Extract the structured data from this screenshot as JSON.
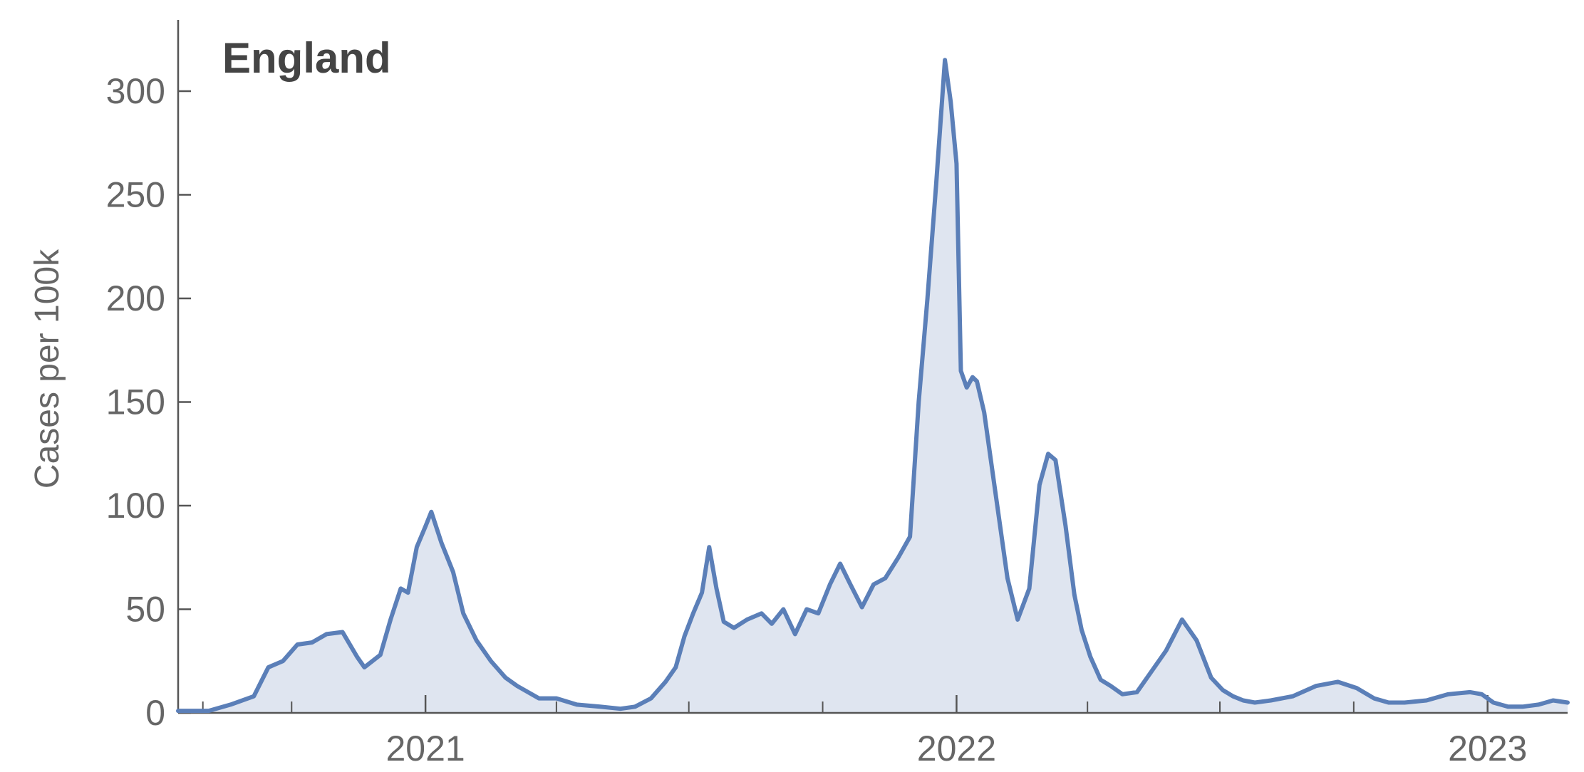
{
  "chart_data": {
    "type": "area",
    "title": "England",
    "xlabel": "",
    "ylabel": "Cases per 100k",
    "ylim": [
      0,
      330
    ],
    "xlim": [
      "2020-07-15",
      "2023-02-25"
    ],
    "y_ticks": [
      0,
      50,
      100,
      150,
      200,
      250,
      300
    ],
    "x_ticks": [
      {
        "date": "2021-01-01",
        "label": "2021"
      },
      {
        "date": "2022-01-01",
        "label": "2022"
      },
      {
        "date": "2023-01-01",
        "label": "2023"
      }
    ],
    "x_minor_ticks": [
      "2020-08-01",
      "2020-10-01",
      "2021-04-01",
      "2021-07-01",
      "2021-10-01",
      "2022-04-01",
      "2022-07-01",
      "2022-10-01"
    ],
    "grid": false,
    "colors": {
      "line": "#5b7fb8",
      "fill": "#dfe5f0",
      "axis": "#555555",
      "text": "#666666",
      "title": "#444444"
    },
    "series": [
      {
        "x": [
          "2020-07-15",
          "2020-08-05",
          "2020-08-20",
          "2020-09-05",
          "2020-09-15",
          "2020-09-25",
          "2020-10-05",
          "2020-10-15",
          "2020-10-25",
          "2020-11-05",
          "2020-11-15",
          "2020-11-20",
          "2020-12-01",
          "2020-12-08",
          "2020-12-15",
          "2020-12-20",
          "2020-12-26",
          "2021-01-01",
          "2021-01-05",
          "2021-01-12",
          "2021-01-20",
          "2021-01-27",
          "2021-02-05",
          "2021-02-15",
          "2021-02-25",
          "2021-03-05",
          "2021-03-20",
          "2021-04-01",
          "2021-04-15",
          "2021-05-01",
          "2021-05-15",
          "2021-05-25",
          "2021-06-05",
          "2021-06-15",
          "2021-06-22",
          "2021-06-28",
          "2021-07-04",
          "2021-07-10",
          "2021-07-15",
          "2021-07-20",
          "2021-07-25",
          "2021-08-01",
          "2021-08-10",
          "2021-08-20",
          "2021-08-27",
          "2021-09-04",
          "2021-09-12",
          "2021-09-20",
          "2021-09-28",
          "2021-10-06",
          "2021-10-13",
          "2021-10-20",
          "2021-10-28",
          "2021-11-05",
          "2021-11-13",
          "2021-11-22",
          "2021-11-30",
          "2021-12-06",
          "2021-12-12",
          "2021-12-18",
          "2021-12-24",
          "2021-12-28",
          "2022-01-01",
          "2022-01-04",
          "2022-01-08",
          "2022-01-12",
          "2022-01-15",
          "2022-01-20",
          "2022-01-25",
          "2022-01-30",
          "2022-02-05",
          "2022-02-12",
          "2022-02-20",
          "2022-02-27",
          "2022-03-05",
          "2022-03-10",
          "2022-03-17",
          "2022-03-23",
          "2022-03-28",
          "2022-04-03",
          "2022-04-10",
          "2022-04-17",
          "2022-04-25",
          "2022-05-05",
          "2022-05-15",
          "2022-05-25",
          "2022-06-05",
          "2022-06-15",
          "2022-06-25",
          "2022-07-03",
          "2022-07-10",
          "2022-07-17",
          "2022-07-25",
          "2022-08-05",
          "2022-08-20",
          "2022-09-05",
          "2022-09-20",
          "2022-10-03",
          "2022-10-15",
          "2022-10-25",
          "2022-11-05",
          "2022-11-20",
          "2022-12-05",
          "2022-12-20",
          "2022-12-28",
          "2023-01-05",
          "2023-01-15",
          "2023-01-25",
          "2023-02-05",
          "2023-02-15",
          "2023-02-25"
        ],
        "y": [
          1,
          1,
          4,
          8,
          22,
          25,
          33,
          34,
          38,
          39,
          27,
          22,
          28,
          45,
          60,
          58,
          80,
          90,
          97,
          82,
          68,
          48,
          35,
          25,
          17,
          13,
          7,
          7,
          4,
          3,
          2,
          3,
          7,
          15,
          22,
          37,
          48,
          58,
          80,
          60,
          44,
          41,
          45,
          48,
          43,
          50,
          38,
          50,
          48,
          62,
          72,
          62,
          51,
          62,
          65,
          75,
          85,
          150,
          200,
          255,
          315,
          295,
          265,
          165,
          157,
          162,
          160,
          145,
          120,
          95,
          65,
          45,
          60,
          110,
          125,
          122,
          90,
          57,
          40,
          27,
          16,
          13,
          9,
          10,
          20,
          30,
          45,
          35,
          17,
          11,
          8,
          6,
          5,
          6,
          8,
          13,
          15,
          12,
          7,
          5,
          5,
          6,
          9,
          10,
          9,
          5,
          3,
          3,
          4,
          6,
          5
        ]
      }
    ]
  }
}
